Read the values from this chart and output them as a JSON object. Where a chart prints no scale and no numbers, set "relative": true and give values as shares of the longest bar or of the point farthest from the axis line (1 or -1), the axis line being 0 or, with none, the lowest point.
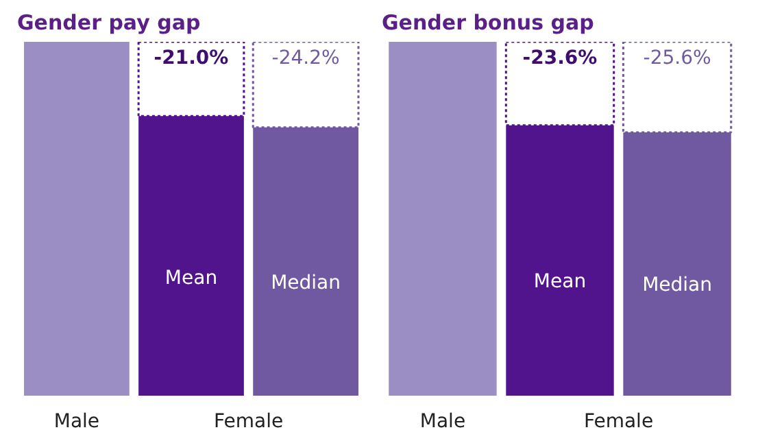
{
  "chart_data": [
    {
      "type": "bar",
      "title": "Gender pay gap",
      "relative": true,
      "categories": [
        "Male",
        "Mean",
        "Median"
      ],
      "values": [
        1,
        0.79,
        0.758
      ],
      "colors": [
        "#9b8ec4",
        "#51148c",
        "#7059a0"
      ],
      "annotations": [
        "Female",
        "-21.0%",
        "-24.2%"
      ]
    },
    {
      "type": "bar",
      "title": "Gender bonus gap",
      "relative": true,
      "categories": [
        "Male",
        "Mean",
        "Median"
      ],
      "values": [
        1,
        0.764,
        0.744
      ],
      "colors": [
        "#9b8ec4",
        "#51148c",
        "#7059a0"
      ],
      "annotations": [
        "Female",
        "-23.6%",
        "-25.6%"
      ]
    }
  ]
}
